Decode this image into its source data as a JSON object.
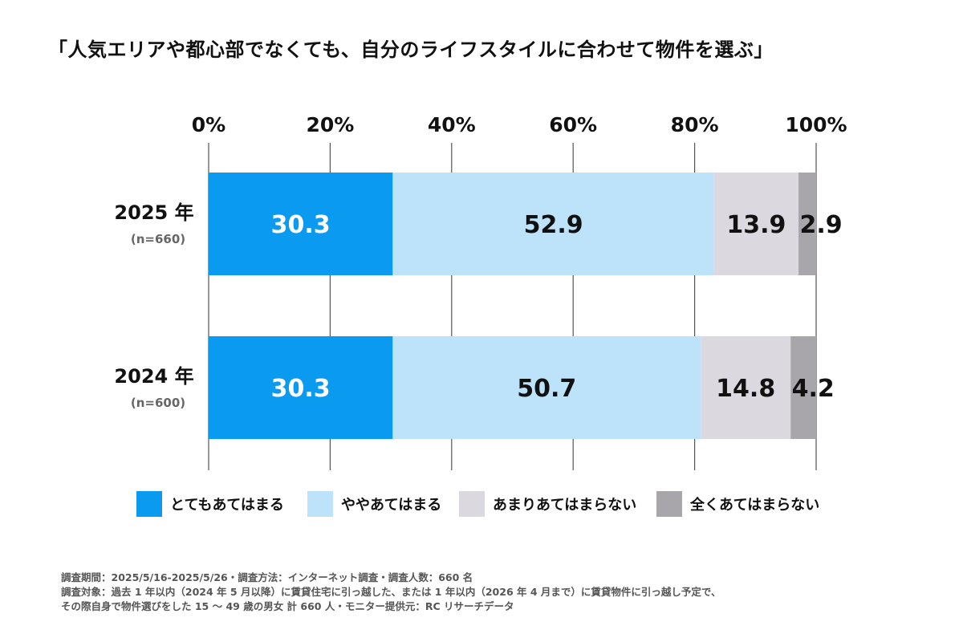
{
  "chart_data": {
    "type": "bar",
    "orientation": "horizontal",
    "stacked": true,
    "title": "「人気エリアや都心部でなくても、自分のライフスタイルに合わせて物件を選ぶ」",
    "categories": [
      "2025 年",
      "2024 年"
    ],
    "category_notes": [
      "(n=660)",
      "(n=600)"
    ],
    "series": [
      {
        "name": "とてもあてはまる",
        "values": [
          30.3,
          30.3
        ],
        "color": "#0a9af0",
        "label_color": "#ffffff"
      },
      {
        "name": "ややあてはまる",
        "values": [
          52.9,
          50.7
        ],
        "color": "#bde3fb",
        "label_color": "#111111"
      },
      {
        "name": "あまりあてはまらない",
        "values": [
          13.9,
          14.8
        ],
        "color": "#dbd9df",
        "label_color": "#111111"
      },
      {
        "name": "全くあてはまらない",
        "values": [
          2.9,
          4.2
        ],
        "color": "#a8a5ab",
        "label_color": "#111111"
      }
    ],
    "x_ticks": [
      "0%",
      "20%",
      "40%",
      "60%",
      "80%",
      "100%"
    ],
    "xlim": [
      0,
      100
    ],
    "grid": true,
    "legend_position": "bottom"
  },
  "notes": [
    "調査期間：2025/5/16-2025/5/26・調査方法：インターネット調査・調査人数：660 名",
    "調査対象：過去 1 年以内（2024 年 5 月以降）に賃貸住宅に引っ越した、または 1 年以内（2026 年 4 月まで）に賃貸物件に引っ越し予定で、",
    "その際自身で物件選びをした 15 ～ 49 歳の男女 計 660 人・モニター提供元：RC リサーチデータ"
  ]
}
